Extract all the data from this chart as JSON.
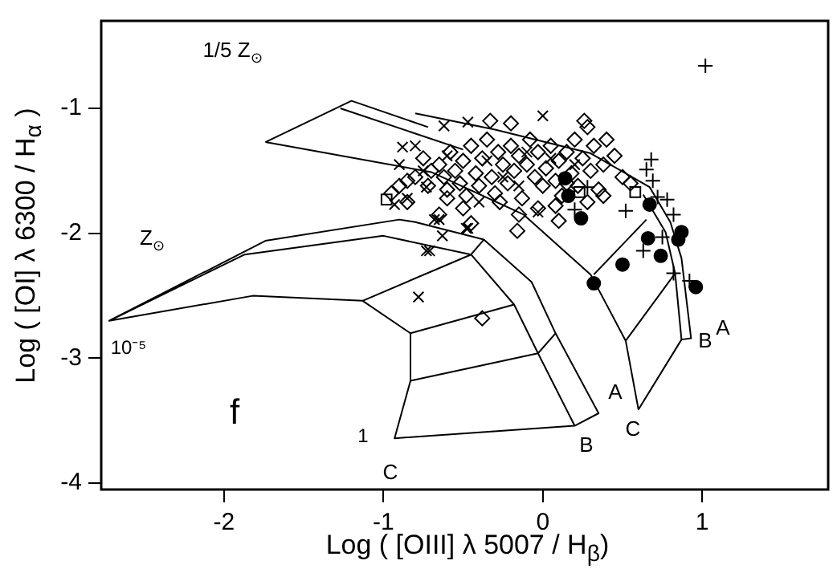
{
  "chart_data": {
    "type": "scatter",
    "xlabel": "Log ( [OIII] λ 5007 / H$_{β}$)",
    "ylabel": "Log ( [OI] λ 6300 / H$_{α}$ )",
    "xlim": [
      -2.77,
      1.79
    ],
    "ylim": [
      -4.05,
      -0.3
    ],
    "xticks": [
      -2,
      -1,
      0,
      1
    ],
    "yticks": [
      -4,
      -3,
      -2,
      -1
    ],
    "grid": false,
    "legend": false,
    "annotations": [
      "1/5 Z$_{⊙}$",
      "Z$_{⊙}$",
      "10⁻⁵",
      "f",
      "1",
      "C",
      "A",
      "B",
      "C",
      "B",
      "A"
    ],
    "series": [
      {
        "type": "line",
        "color": "#000000",
        "marker": "none",
        "x": [
          -1.74,
          -1.2,
          -0.72,
          null,
          -1.27,
          -0.5,
          null,
          -1.74,
          -0.7,
          -0.12,
          0.3,
          0.52,
          0.6,
          0.87,
          0.93,
          0.87,
          0.8,
          0.67,
          0.3,
          -0.3,
          -0.8,
          null,
          0.63,
          0.77,
          0.83,
          0.87,
          null,
          0.32,
          0.65,
          null,
          0.52,
          0.83
        ],
        "values": [
          -1.27,
          -0.94,
          -1.15,
          null,
          -1.0,
          -1.33,
          null,
          -1.27,
          -1.51,
          -1.85,
          -2.33,
          -2.86,
          -3.41,
          -2.85,
          -2.84,
          -2.2,
          -1.91,
          -1.63,
          -1.36,
          -1.17,
          -1.04,
          null,
          -1.69,
          -1.99,
          -2.32,
          -2.85,
          null,
          -2.33,
          -1.89,
          null,
          -2.86,
          -2.32
        ]
      },
      {
        "type": "line",
        "color": "#000000",
        "marker": "none",
        "x": [
          -0.8,
          -0.9,
          -1.74,
          -2.72,
          -1.87,
          -1.0,
          -0.45,
          -0.18,
          -0.03,
          0.2,
          0.35,
          0.08,
          -0.07,
          -0.37,
          -0.45,
          -1.13,
          -1.82,
          -2.72,
          null,
          -1.13,
          -0.83,
          -0.83,
          -0.93,
          0.2,
          null,
          -0.83,
          -0.18,
          null,
          -0.37,
          -0.8,
          null,
          -0.83,
          -0.03,
          0.08,
          -0.07,
          null,
          -0.07,
          -0.37
        ],
        "values": [
          -1.91,
          -1.89,
          -2.06,
          -2.7,
          -2.17,
          -2.02,
          -2.17,
          -2.57,
          -2.96,
          -3.54,
          -3.44,
          -2.8,
          -2.39,
          -2.05,
          -2.17,
          -2.54,
          -2.5,
          -2.7,
          null,
          -2.54,
          -2.8,
          -3.18,
          -3.64,
          -3.54,
          null,
          -2.8,
          -2.57,
          null,
          -2.05,
          -1.91,
          null,
          -3.18,
          -2.96,
          -2.8,
          -2.39,
          null,
          -2.39,
          -2.05
        ]
      },
      {
        "type": "scatter",
        "color": "#000000",
        "marker": "diamond",
        "x": [
          -0.95,
          -0.9,
          -0.85,
          -0.8,
          -0.75,
          -0.72,
          -0.7,
          -0.65,
          -0.62,
          -0.6,
          -0.58,
          -0.55,
          -0.52,
          -0.5,
          -0.48,
          -0.45,
          -0.42,
          -0.4,
          -0.38,
          -0.35,
          -0.32,
          -0.3,
          -0.28,
          -0.25,
          -0.22,
          -0.2,
          -0.18,
          -0.15,
          -0.13,
          -0.1,
          -0.08,
          -0.05,
          -0.03,
          0,
          0.02,
          0.05,
          0.08,
          0.1,
          0.12,
          0.15,
          0.18,
          0.2,
          0.22,
          0.25,
          0.28,
          0.3,
          0.32,
          0.35,
          0.38,
          0.4,
          0.45,
          0.5,
          0.55,
          -0.33,
          -0.2,
          0.26,
          0.15,
          -0.5,
          -0.45,
          -0.65,
          -0.15,
          0.08,
          -0.03,
          0.1,
          -0.27,
          -0.6,
          -0.85,
          0.28,
          0.38,
          -0.16,
          -0.38
        ],
        "values": [
          -1.68,
          -1.62,
          -1.58,
          -1.55,
          -1.4,
          -1.62,
          -1.5,
          -1.45,
          -1.55,
          -1.65,
          -1.35,
          -1.5,
          -1.6,
          -1.42,
          -1.7,
          -1.3,
          -1.52,
          -1.62,
          -1.4,
          -1.25,
          -1.55,
          -1.68,
          -1.35,
          -1.45,
          -1.6,
          -1.3,
          -1.5,
          -1.38,
          -1.72,
          -1.45,
          -1.25,
          -1.55,
          -1.35,
          -1.62,
          -1.48,
          -1.3,
          -1.58,
          -1.42,
          -1.7,
          -1.35,
          -1.52,
          -1.25,
          -1.62,
          -1.4,
          -1.15,
          -1.5,
          -1.3,
          -1.65,
          -1.45,
          -1.25,
          -1.38,
          -1.55,
          -1.6,
          -1.1,
          -1.12,
          -1.1,
          -1.6,
          -1.8,
          -1.92,
          -1.85,
          -1.85,
          -1.78,
          -1.8,
          -1.9,
          -1.75,
          -1.72,
          -1.75,
          -1.75,
          -1.7,
          -1.98,
          -2.68
        ]
      },
      {
        "type": "scatter",
        "color": "#000000",
        "marker": "cross",
        "x": [
          -0.88,
          -0.8,
          -0.93,
          -0.73,
          -0.78,
          -0.68,
          -0.63,
          -0.71,
          -0.47,
          -0.03,
          0,
          -0.47,
          -0.62,
          -0.48,
          -0.73,
          -0.65,
          -0.9,
          -0.75,
          -0.6,
          -0.35,
          -0.25,
          -0.1,
          -0.4,
          0.05,
          0.2,
          -0.15,
          -0.85
        ],
        "values": [
          -1.31,
          -1.3,
          -1.77,
          -2.14,
          -2.51,
          -1.89,
          -2.02,
          -2.14,
          -1.96,
          -1.83,
          -1.06,
          -1.11,
          -1.14,
          -1.96,
          -1.63,
          -1.89,
          -1.45,
          -1.5,
          -1.38,
          -1.42,
          -1.55,
          -1.35,
          -1.75,
          -1.4,
          -1.45,
          -1.62,
          -1.72
        ]
      },
      {
        "type": "scatter",
        "color": "#000000",
        "marker": "plus",
        "x": [
          1.02,
          0.68,
          0.65,
          0.69,
          0.72,
          0.78,
          0.82,
          0.52,
          0.75,
          0.63,
          0.82,
          0.92,
          0.28,
          0.2
        ],
        "values": [
          -0.66,
          -1.41,
          -1.49,
          -1.58,
          -1.71,
          -1.73,
          -1.85,
          -1.82,
          -2.03,
          -2.14,
          -2.32,
          -2.38,
          -1.63,
          -1.81
        ]
      },
      {
        "type": "scatter",
        "color": "#000000",
        "marker": "circle",
        "x": [
          0.14,
          0.16,
          0.24,
          0.67,
          0.66,
          0.74,
          0.87,
          0.5,
          0.32,
          0.96,
          0.85
        ],
        "values": [
          -1.56,
          -1.7,
          -1.88,
          -1.77,
          -2.04,
          -2.18,
          -1.99,
          -2.25,
          -2.4,
          -2.43,
          -2.05
        ]
      },
      {
        "type": "scatter",
        "color": "#000000",
        "marker": "square",
        "x": [
          -0.98,
          0.23,
          0.58
        ],
        "values": [
          -1.73,
          -1.67,
          -1.67
        ]
      }
    ]
  }
}
